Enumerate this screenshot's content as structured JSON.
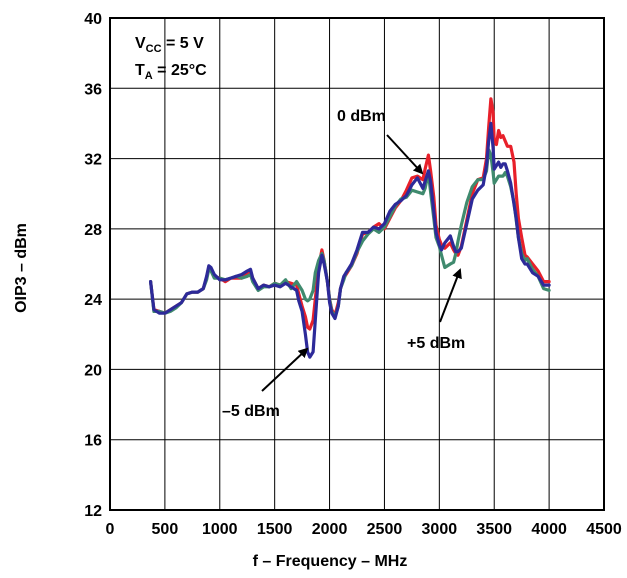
{
  "chart_data": {
    "type": "line",
    "xlabel": "f – Frequency – MHz",
    "ylabel": "OIP3 – dBm",
    "xlim": [
      0,
      4500
    ],
    "ylim": [
      12,
      40
    ],
    "xticks": [
      0,
      500,
      1000,
      1500,
      2000,
      2500,
      3000,
      3500,
      4000,
      4500
    ],
    "yticks": [
      12,
      16,
      20,
      24,
      28,
      32,
      36,
      40
    ],
    "grid": true,
    "legend": "none",
    "conditions": {
      "vcc_main": "V",
      "vcc_sub": "CC",
      "vcc_rest": " = 5 V",
      "ta_main": "T",
      "ta_sub": "A",
      "ta_rest": " = 25°C"
    },
    "annotations": [
      {
        "text": "0 dBm",
        "series": "0 dBm"
      },
      {
        "text": "+5 dBm",
        "series": "+5 dBm"
      },
      {
        "text": "–5 dBm",
        "series": "–5 dBm"
      }
    ],
    "series": [
      {
        "name": "0 dBm",
        "color": "#e8202a",
        "x": [
          370,
          400,
          450,
          500,
          550,
          600,
          650,
          700,
          750,
          800,
          850,
          880,
          900,
          920,
          950,
          1000,
          1050,
          1100,
          1150,
          1200,
          1250,
          1280,
          1300,
          1350,
          1400,
          1450,
          1500,
          1550,
          1600,
          1650,
          1700,
          1720,
          1750,
          1780,
          1800,
          1820,
          1850,
          1870,
          1900,
          1930,
          1950,
          1980,
          2000,
          2020,
          2050,
          2080,
          2100,
          2130,
          2150,
          2200,
          2250,
          2300,
          2350,
          2400,
          2450,
          2500,
          2550,
          2600,
          2650,
          2700,
          2750,
          2800,
          2850,
          2870,
          2900,
          2920,
          2950,
          2970,
          3000,
          3020,
          3050,
          3100,
          3130,
          3150,
          3170,
          3200,
          3250,
          3300,
          3350,
          3400,
          3430,
          3450,
          3470,
          3490,
          3500,
          3520,
          3540,
          3560,
          3580,
          3600,
          3620,
          3650,
          3680,
          3700,
          3720,
          3750,
          3780,
          3800,
          3850,
          3900,
          3950,
          4000
        ],
        "y": [
          25.0,
          23.4,
          23.3,
          23.2,
          23.4,
          23.6,
          23.8,
          24.3,
          24.4,
          24.4,
          24.6,
          25.2,
          25.8,
          25.7,
          25.3,
          25.2,
          25.0,
          25.2,
          25.2,
          25.2,
          25.5,
          25.6,
          25.2,
          24.6,
          24.8,
          24.7,
          24.9,
          24.8,
          25.0,
          24.9,
          24.8,
          24.3,
          23.6,
          23.0,
          22.4,
          22.3,
          22.8,
          24.0,
          25.8,
          26.8,
          26.2,
          25.0,
          24.0,
          23.4,
          23.1,
          23.8,
          24.6,
          25.2,
          25.4,
          25.9,
          26.6,
          27.7,
          27.8,
          28.1,
          28.3,
          28.0,
          28.6,
          29.2,
          29.6,
          30.2,
          30.9,
          31.0,
          30.8,
          31.4,
          32.2,
          31.3,
          29.8,
          28.2,
          27.4,
          27.1,
          26.9,
          27.2,
          26.8,
          26.6,
          26.5,
          27.0,
          28.5,
          30.0,
          30.8,
          30.9,
          32.0,
          33.8,
          35.4,
          34.6,
          33.0,
          32.8,
          33.6,
          33.2,
          33.3,
          33.0,
          32.7,
          32.7,
          31.8,
          30.0,
          28.6,
          27.5,
          26.5,
          26.4,
          26.0,
          25.6,
          25.0,
          25.0
        ]
      },
      {
        "name": "+5 dBm",
        "color": "#3f8a6e",
        "x": [
          370,
          400,
          450,
          500,
          550,
          600,
          650,
          700,
          750,
          800,
          850,
          880,
          900,
          920,
          950,
          1000,
          1050,
          1100,
          1150,
          1200,
          1250,
          1280,
          1300,
          1350,
          1400,
          1450,
          1500,
          1550,
          1600,
          1650,
          1700,
          1720,
          1750,
          1780,
          1800,
          1820,
          1850,
          1870,
          1900,
          1930,
          1950,
          1980,
          2000,
          2020,
          2050,
          2080,
          2100,
          2130,
          2150,
          2200,
          2250,
          2300,
          2350,
          2400,
          2450,
          2500,
          2550,
          2600,
          2650,
          2700,
          2750,
          2800,
          2850,
          2870,
          2900,
          2920,
          2950,
          2970,
          3000,
          3020,
          3050,
          3100,
          3130,
          3150,
          3170,
          3200,
          3250,
          3300,
          3350,
          3400,
          3430,
          3450,
          3470,
          3490,
          3500,
          3520,
          3540,
          3560,
          3580,
          3600,
          3620,
          3650,
          3680,
          3700,
          3720,
          3750,
          3780,
          3800,
          3850,
          3900,
          3950,
          4000
        ],
        "y": [
          25.0,
          23.3,
          23.3,
          23.2,
          23.3,
          23.5,
          23.8,
          24.3,
          24.4,
          24.4,
          24.6,
          25.1,
          25.7,
          25.6,
          25.2,
          25.2,
          25.1,
          25.2,
          25.3,
          25.2,
          25.3,
          25.4,
          25.0,
          24.5,
          24.7,
          24.7,
          24.9,
          24.8,
          25.1,
          24.6,
          25.0,
          24.8,
          24.5,
          24.0,
          23.9,
          24.0,
          24.5,
          25.5,
          26.2,
          26.6,
          26.2,
          25.0,
          24.0,
          23.3,
          23.0,
          23.6,
          24.6,
          25.1,
          25.5,
          25.9,
          26.7,
          27.3,
          27.7,
          28.0,
          27.8,
          28.1,
          28.7,
          29.3,
          29.7,
          29.8,
          30.2,
          30.1,
          30.0,
          30.3,
          31.2,
          30.1,
          28.6,
          27.5,
          27.0,
          26.5,
          25.8,
          26.0,
          26.1,
          26.6,
          27.3,
          28.2,
          29.5,
          30.4,
          30.8,
          30.8,
          31.3,
          32.5,
          32.2,
          31.2,
          30.6,
          30.8,
          31.0,
          31.0,
          31.0,
          31.2,
          31.0,
          30.4,
          29.5,
          28.5,
          27.5,
          26.6,
          26.2,
          26.3,
          25.7,
          25.3,
          24.6,
          24.5
        ]
      },
      {
        "name": "–5 dBm",
        "color": "#2d2a99",
        "x": [
          370,
          400,
          450,
          500,
          550,
          600,
          650,
          700,
          750,
          800,
          850,
          880,
          900,
          920,
          950,
          1000,
          1050,
          1100,
          1150,
          1200,
          1250,
          1280,
          1300,
          1350,
          1400,
          1450,
          1500,
          1550,
          1600,
          1650,
          1700,
          1720,
          1750,
          1780,
          1800,
          1820,
          1850,
          1870,
          1900,
          1930,
          1950,
          1980,
          2000,
          2020,
          2050,
          2080,
          2100,
          2130,
          2150,
          2200,
          2250,
          2300,
          2350,
          2400,
          2450,
          2500,
          2550,
          2600,
          2650,
          2700,
          2750,
          2800,
          2850,
          2870,
          2900,
          2920,
          2950,
          2970,
          3000,
          3020,
          3050,
          3100,
          3130,
          3150,
          3170,
          3200,
          3250,
          3300,
          3350,
          3400,
          3430,
          3450,
          3470,
          3490,
          3500,
          3520,
          3540,
          3560,
          3580,
          3600,
          3620,
          3650,
          3680,
          3700,
          3720,
          3750,
          3780,
          3800,
          3850,
          3900,
          3950,
          4000
        ],
        "y": [
          25.0,
          23.4,
          23.2,
          23.2,
          23.4,
          23.6,
          23.8,
          24.3,
          24.4,
          24.4,
          24.6,
          25.3,
          25.9,
          25.8,
          25.4,
          25.1,
          25.1,
          25.2,
          25.3,
          25.4,
          25.6,
          25.7,
          25.2,
          24.6,
          24.8,
          24.7,
          24.8,
          24.7,
          24.9,
          24.7,
          24.5,
          23.9,
          23.3,
          22.0,
          21.0,
          20.7,
          21.0,
          22.8,
          25.5,
          26.5,
          26.0,
          25.0,
          23.8,
          23.2,
          22.9,
          23.6,
          24.6,
          25.3,
          25.5,
          26.0,
          26.8,
          27.8,
          27.8,
          28.1,
          28.0,
          28.3,
          29.0,
          29.4,
          29.6,
          29.9,
          30.5,
          30.9,
          30.3,
          30.7,
          31.3,
          30.7,
          29.0,
          27.8,
          27.1,
          26.8,
          27.2,
          27.6,
          27.0,
          26.7,
          26.7,
          26.9,
          28.3,
          29.7,
          30.2,
          30.5,
          31.6,
          33.0,
          34.0,
          32.6,
          31.4,
          31.6,
          31.8,
          31.5,
          31.7,
          31.7,
          31.3,
          30.6,
          29.4,
          28.6,
          27.5,
          26.3,
          26.0,
          26.0,
          25.5,
          25.3,
          24.8,
          24.8
        ]
      }
    ]
  }
}
